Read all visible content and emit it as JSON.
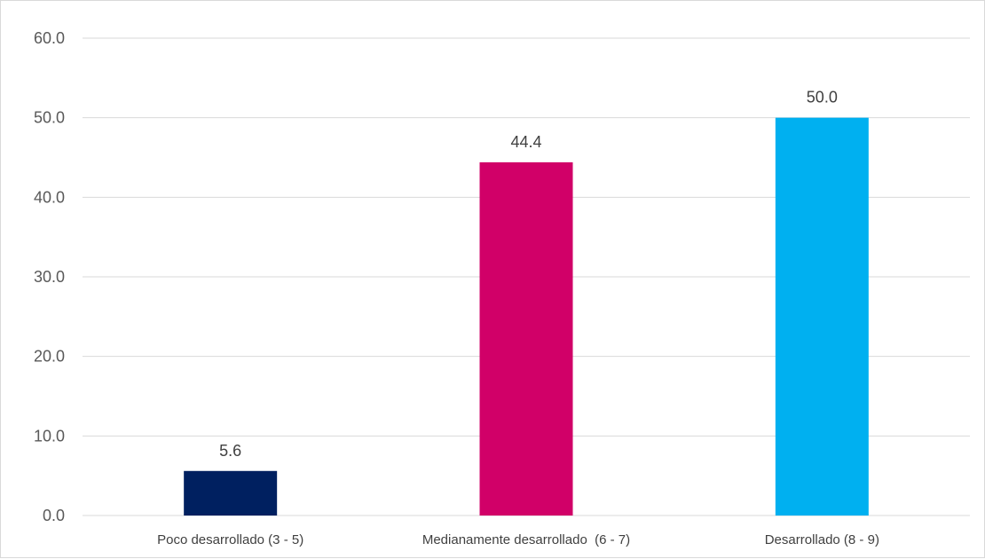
{
  "chart_data": {
    "type": "bar",
    "categories": [
      "Poco desarrollado (3 - 5)",
      "Medianamente desarrollado  (6 - 7)",
      "Desarrollado (8 - 9)"
    ],
    "values": [
      5.6,
      44.4,
      50.0
    ],
    "data_labels": [
      "5.6",
      "44.4",
      "50.0"
    ],
    "colors": [
      "#002060",
      "#D10068",
      "#00B0F0"
    ],
    "title": "",
    "xlabel": "",
    "ylabel": "",
    "ylim": [
      0,
      60
    ],
    "yticks": [
      0,
      10,
      20,
      30,
      40,
      50,
      60
    ],
    "ytick_labels": [
      "0.0",
      "10.0",
      "20.0",
      "30.0",
      "40.0",
      "50.0",
      "60.0"
    ],
    "grid": true,
    "legend": "none"
  }
}
